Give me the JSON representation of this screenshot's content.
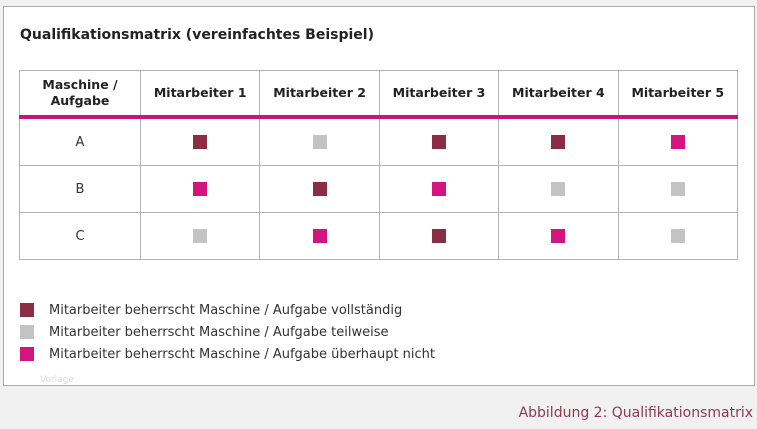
{
  "title": "Qualifikationsmatrix (vereinfachtes Beispiel)",
  "colors": {
    "vollstaendig": "#8b2e45",
    "teilweise": "#c3c3c3",
    "ueberhaupt_nicht": "#d4157f",
    "accent": "#c8127e",
    "caption": "#8b3a4f"
  },
  "table": {
    "corner_header": "Maschine / Aufgabe",
    "columns": [
      "Mitarbeiter 1",
      "Mitarbeiter 2",
      "Mitarbeiter 3",
      "Mitarbeiter 4",
      "Mitarbeiter 5"
    ],
    "rows": [
      {
        "label": "A",
        "cells": [
          "vollstaendig",
          "teilweise",
          "vollstaendig",
          "vollstaendig",
          "ueberhaupt_nicht"
        ]
      },
      {
        "label": "B",
        "cells": [
          "ueberhaupt_nicht",
          "vollstaendig",
          "ueberhaupt_nicht",
          "teilweise",
          "teilweise"
        ]
      },
      {
        "label": "C",
        "cells": [
          "teilweise",
          "ueberhaupt_nicht",
          "vollstaendig",
          "ueberhaupt_nicht",
          "teilweise"
        ]
      }
    ]
  },
  "legend": [
    {
      "key": "vollstaendig",
      "text": "Mitarbeiter beherrscht Maschine / Aufgabe vollständig"
    },
    {
      "key": "teilweise",
      "text": "Mitarbeiter beherrscht Maschine / Aufgabe teilweise"
    },
    {
      "key": "ueberhaupt_nicht",
      "text": "Mitarbeiter beherrscht Maschine / Aufgabe überhaupt nicht"
    }
  ],
  "watermark": "Vorlage",
  "caption": "Abbildung 2: Qualifikationsmatrix"
}
